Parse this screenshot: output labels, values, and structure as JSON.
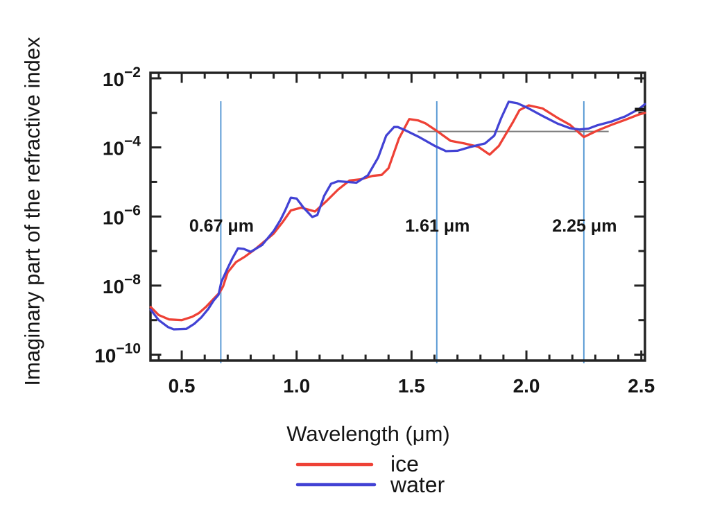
{
  "chart_data": {
    "type": "line",
    "title": "",
    "xlabel": "Wavelength (μm)",
    "ylabel": "Imaginary part of the refractive index",
    "grid": "off",
    "legend_position": "bottom-center",
    "x_axis": {
      "min": 0.364,
      "max": 2.516,
      "major_ticks": [
        0.5,
        1.0,
        1.5,
        2.0,
        2.5
      ],
      "major_tick_labels": [
        "0.5",
        "1.0",
        "1.5",
        "2.0",
        "2.5"
      ],
      "minor_tick_start": 0.4,
      "minor_tick_step": 0.1
    },
    "y_axis": {
      "scale": "log",
      "min_exp": -10.17,
      "max_exp": -1.84,
      "tick_exponents": [
        -2,
        -3,
        -4,
        -5,
        -6,
        -7,
        -8,
        -9,
        -10
      ],
      "labeled_ticks": [
        {
          "exp": -2,
          "base": "10",
          "sup": "−2"
        },
        {
          "exp": -4,
          "base": "10",
          "sup": "−4"
        },
        {
          "exp": -6,
          "base": "10",
          "sup": "−6"
        },
        {
          "exp": -8,
          "base": "10",
          "sup": "−8"
        },
        {
          "exp": -10,
          "base": "10",
          "sup": "−10"
        }
      ]
    },
    "series": [
      {
        "name": "ice",
        "color": "#ee4136",
        "points": [
          [
            0.365,
            2.4e-09
          ],
          [
            0.4,
            1.4e-09
          ],
          [
            0.445,
            1.05e-09
          ],
          [
            0.5,
            1e-09
          ],
          [
            0.545,
            1.25e-09
          ],
          [
            0.575,
            1.6e-09
          ],
          [
            0.605,
            2.4e-09
          ],
          [
            0.635,
            3.9e-09
          ],
          [
            0.665,
            6.3e-09
          ],
          [
            0.68,
            9.5e-09
          ],
          [
            0.7,
            2.4e-08
          ],
          [
            0.736,
            4.8e-08
          ],
          [
            0.775,
            6.9e-08
          ],
          [
            0.817,
            1.1e-07
          ],
          [
            0.86,
            1.9e-07
          ],
          [
            0.9,
            3.2e-07
          ],
          [
            0.94,
            7e-07
          ],
          [
            0.975,
            1.5e-06
          ],
          [
            1.02,
            1.8e-06
          ],
          [
            1.08,
            1.4e-06
          ],
          [
            1.13,
            2.8e-06
          ],
          [
            1.18,
            6e-06
          ],
          [
            1.23,
            1.1e-05
          ],
          [
            1.28,
            1.2e-05
          ],
          [
            1.33,
            1.5e-05
          ],
          [
            1.37,
            1.6e-05
          ],
          [
            1.4,
            2.5e-05
          ],
          [
            1.445,
            0.00018
          ],
          [
            1.49,
            0.00066
          ],
          [
            1.53,
            0.0006
          ],
          [
            1.56,
            0.0005
          ],
          [
            1.61,
            0.0003
          ],
          [
            1.67,
            0.000155
          ],
          [
            1.73,
            0.00013
          ],
          [
            1.79,
            0.000105
          ],
          [
            1.84,
            6.2e-05
          ],
          [
            1.88,
            0.00011
          ],
          [
            1.94,
            0.00052
          ],
          [
            1.97,
            0.0012
          ],
          [
            2.01,
            0.00165
          ],
          [
            2.07,
            0.00135
          ],
          [
            2.135,
            0.00072
          ],
          [
            2.19,
            0.00045
          ],
          [
            2.25,
            0.0002
          ],
          [
            2.31,
            0.00031
          ],
          [
            2.37,
            0.00045
          ],
          [
            2.43,
            0.00063
          ],
          [
            2.49,
            0.0009
          ],
          [
            2.516,
            0.001
          ]
        ]
      },
      {
        "name": "water",
        "color": "#4242d4",
        "points": [
          [
            0.365,
            2e-09
          ],
          [
            0.4,
            1e-09
          ],
          [
            0.44,
            6.3e-10
          ],
          [
            0.465,
            5.4e-10
          ],
          [
            0.52,
            5.6e-10
          ],
          [
            0.554,
            7.8e-10
          ],
          [
            0.585,
            1.2e-09
          ],
          [
            0.615,
            2.1e-09
          ],
          [
            0.639,
            3.7e-09
          ],
          [
            0.66,
            5.4e-09
          ],
          [
            0.672,
            1.25e-08
          ],
          [
            0.7,
            3.2e-08
          ],
          [
            0.72,
            6e-08
          ],
          [
            0.745,
            1.2e-07
          ],
          [
            0.77,
            1.15e-07
          ],
          [
            0.8,
            9.5e-08
          ],
          [
            0.85,
            1.5e-07
          ],
          [
            0.9,
            3.8e-07
          ],
          [
            0.93,
            8e-07
          ],
          [
            0.95,
            1.5e-06
          ],
          [
            0.975,
            3.5e-06
          ],
          [
            1.0,
            3.3e-06
          ],
          [
            1.03,
            1.8e-06
          ],
          [
            1.068,
            9.7e-07
          ],
          [
            1.09,
            1.1e-06
          ],
          [
            1.12,
            4e-06
          ],
          [
            1.15,
            8.9e-06
          ],
          [
            1.18,
            1.05e-05
          ],
          [
            1.22,
            1e-05
          ],
          [
            1.26,
            9.5e-06
          ],
          [
            1.31,
            1.55e-05
          ],
          [
            1.355,
            5.1e-05
          ],
          [
            1.39,
            0.00022
          ],
          [
            1.424,
            0.00039
          ],
          [
            1.44,
            0.00039
          ],
          [
            1.47,
            0.00032
          ],
          [
            1.53,
            0.000205
          ],
          [
            1.6,
            0.000112
          ],
          [
            1.65,
            7.8e-05
          ],
          [
            1.7,
            8e-05
          ],
          [
            1.76,
            0.000105
          ],
          [
            1.82,
            0.00013
          ],
          [
            1.86,
            0.00022
          ],
          [
            1.89,
            0.0007
          ],
          [
            1.923,
            0.0021
          ],
          [
            1.96,
            0.0019
          ],
          [
            2.005,
            0.0014
          ],
          [
            2.074,
            0.00079
          ],
          [
            2.135,
            0.00049
          ],
          [
            2.19,
            0.00036
          ],
          [
            2.23,
            0.00033
          ],
          [
            2.27,
            0.00035
          ],
          [
            2.31,
            0.00044
          ],
          [
            2.37,
            0.00056
          ],
          [
            2.43,
            0.00079
          ],
          [
            2.49,
            0.0013
          ],
          [
            2.516,
            0.0018
          ]
        ]
      }
    ],
    "annotations": {
      "vline_color": "#5b9bd5",
      "vlines": [
        {
          "x": 0.67,
          "label": "0.67 μm"
        },
        {
          "x": 1.61,
          "label": "1.61 μm"
        },
        {
          "x": 2.25,
          "label": "2.25 μm"
        }
      ],
      "hline": {
        "value": 0.00029,
        "x1": 1.527,
        "x2": 2.358,
        "color": "#7a7a7a"
      },
      "dash": {
        "value": 0.00125,
        "x1": 2.472,
        "x2": 2.516,
        "color": "#161616"
      }
    },
    "legend": [
      {
        "label": "ice",
        "color": "#ee4136"
      },
      {
        "label": "water",
        "color": "#4242d4"
      }
    ]
  }
}
